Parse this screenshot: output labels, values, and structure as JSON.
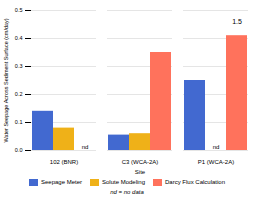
{
  "chart_data": {
    "type": "bar",
    "categories": [
      "102 (BNR)",
      "C3 (WCA-2A)",
      "P1 (WCA-2A)"
    ],
    "series": [
      {
        "name": "Seepage Meter",
        "values": [
          0.14,
          0.055,
          0.25
        ]
      },
      {
        "name": "Solute Modeling",
        "values": [
          0.08,
          0.06,
          0.0
        ]
      },
      {
        "name": "Darcy Flux Calculation",
        "values": [
          0.0,
          0.35,
          0.41
        ]
      }
    ],
    "xlabel": "Site",
    "ylabel": "Water Seepage Across Sediment Surface (cm/day)",
    "ylim": [
      0,
      0.5
    ],
    "yticks": [
      {
        "value": 0.0,
        "label": "0.0"
      },
      0.1,
      0.2,
      0.3,
      0.4,
      0.5
    ],
    "grid": true,
    "legend": "bottom",
    "annotations": [
      {
        "text": "nd",
        "category": "102 (BNR)",
        "series": "Darcy Flux Calculation"
      },
      {
        "text": "nd",
        "category": "P1 (WCA-2A)",
        "series": "Solute Modeling"
      },
      {
        "text": "1.5",
        "category": "P1 (WCA-2A)",
        "series": "Darcy Flux Calculation",
        "line_style": "dashed"
      },
      {
        "text": "nd = no data"
      }
    ]
  }
}
